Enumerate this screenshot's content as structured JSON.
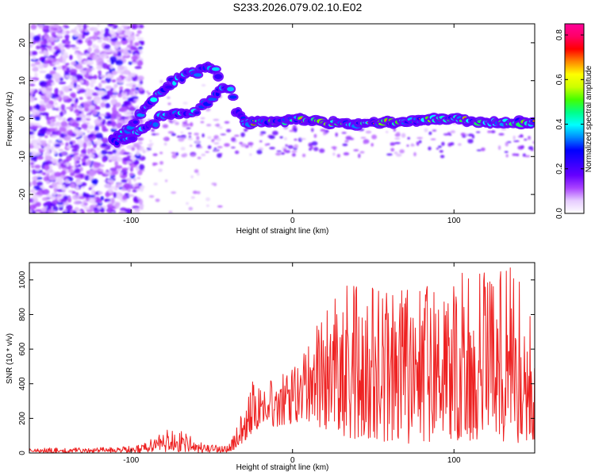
{
  "title": "S233.2026.079.02.10.E02",
  "chart_data": [
    {
      "type": "heatmap",
      "name": "spectrogram",
      "xlabel": "Height of straight line (km)",
      "ylabel": "Frequency (Hz)",
      "xlim": [
        -163,
        150
      ],
      "ylim": [
        -25,
        25
      ],
      "xticks": [
        -100,
        0,
        100
      ],
      "xtick_labels": [
        "-100",
        "0",
        "100"
      ],
      "yticks": [
        20,
        10,
        0,
        -10,
        -20
      ],
      "ytick_labels": [
        "20",
        "10",
        "0",
        "-10",
        "-20"
      ],
      "colorbar": {
        "label": "Normalized spectral amplitude",
        "range": [
          0,
          0.85
        ],
        "ticks": [
          0,
          0.2,
          0.4,
          0.6,
          0.8
        ],
        "tick_labels": [
          "0.0",
          "0.2",
          "0.4",
          "0.6",
          "0.8"
        ],
        "colormap": [
          "#ffffff",
          "#e6ccff",
          "#aa44ff",
          "#6600ff",
          "#3300ff",
          "#0000ff",
          "#0088ff",
          "#00ffff",
          "#00ff88",
          "#44ff00",
          "#ccff00",
          "#ffff00",
          "#ff8800",
          "#ff0000",
          "#ff0066",
          "#ff0099"
        ]
      },
      "tracks": [
        {
          "name": "upper diagonal track",
          "points": [
            [
              -110,
              -5
            ],
            [
              -100,
              -2
            ],
            [
              -90,
              4
            ],
            [
              -80,
              8
            ],
            [
              -70,
              11
            ],
            [
              -60,
              12
            ],
            [
              -50,
              14
            ],
            [
              -45,
              11
            ]
          ]
        },
        {
          "name": "lower diagonal track",
          "points": [
            [
              -112,
              -6
            ],
            [
              -100,
              -5
            ],
            [
              -88,
              -2
            ],
            [
              -80,
              1
            ],
            [
              -70,
              1
            ],
            [
              -60,
              2
            ],
            [
              -50,
              5
            ],
            [
              -42,
              8
            ],
            [
              -38,
              7
            ],
            [
              -35,
              2
            ],
            [
              -30,
              0
            ]
          ]
        },
        {
          "name": "main band",
          "points": [
            [
              -30,
              -1
            ],
            [
              -10,
              -1
            ],
            [
              0,
              0
            ],
            [
              20,
              -1
            ],
            [
              40,
              -1.5
            ],
            [
              60,
              -1
            ],
            [
              80,
              -0.5
            ],
            [
              100,
              0
            ],
            [
              120,
              -1
            ],
            [
              140,
              -1
            ],
            [
              150,
              -1
            ]
          ]
        }
      ]
    },
    {
      "type": "line",
      "name": "snr",
      "xlabel": "Height of straight line (km)",
      "ylabel": "SNR (10 * v/v)",
      "xlim": [
        -163,
        150
      ],
      "ylim": [
        0,
        1100
      ],
      "xticks": [
        -100,
        0,
        100
      ],
      "xtick_labels": [
        "-100",
        "0",
        "100"
      ],
      "yticks": [
        0,
        200,
        400,
        600,
        800,
        1000
      ],
      "ytick_labels": [
        "0",
        "200",
        "400",
        "600",
        "800",
        "1000"
      ],
      "color": "#ee2222",
      "envelope": {
        "x": [
          -163,
          -130,
          -100,
          -90,
          -80,
          -75,
          -70,
          -60,
          -50,
          -40,
          -35,
          -30,
          -25,
          -20,
          -10,
          0,
          10,
          20,
          30,
          40,
          60,
          80,
          100,
          120,
          140,
          150
        ],
        "low": [
          0,
          0,
          0,
          0,
          5,
          10,
          5,
          0,
          0,
          5,
          20,
          60,
          120,
          140,
          150,
          160,
          180,
          120,
          100,
          80,
          60,
          50,
          60,
          60,
          60,
          80
        ],
        "high": [
          30,
          30,
          40,
          70,
          120,
          160,
          130,
          80,
          50,
          40,
          140,
          320,
          420,
          380,
          440,
          480,
          620,
          880,
          960,
          1000,
          980,
          960,
          1040,
          1060,
          1080,
          720
        ]
      }
    }
  ]
}
